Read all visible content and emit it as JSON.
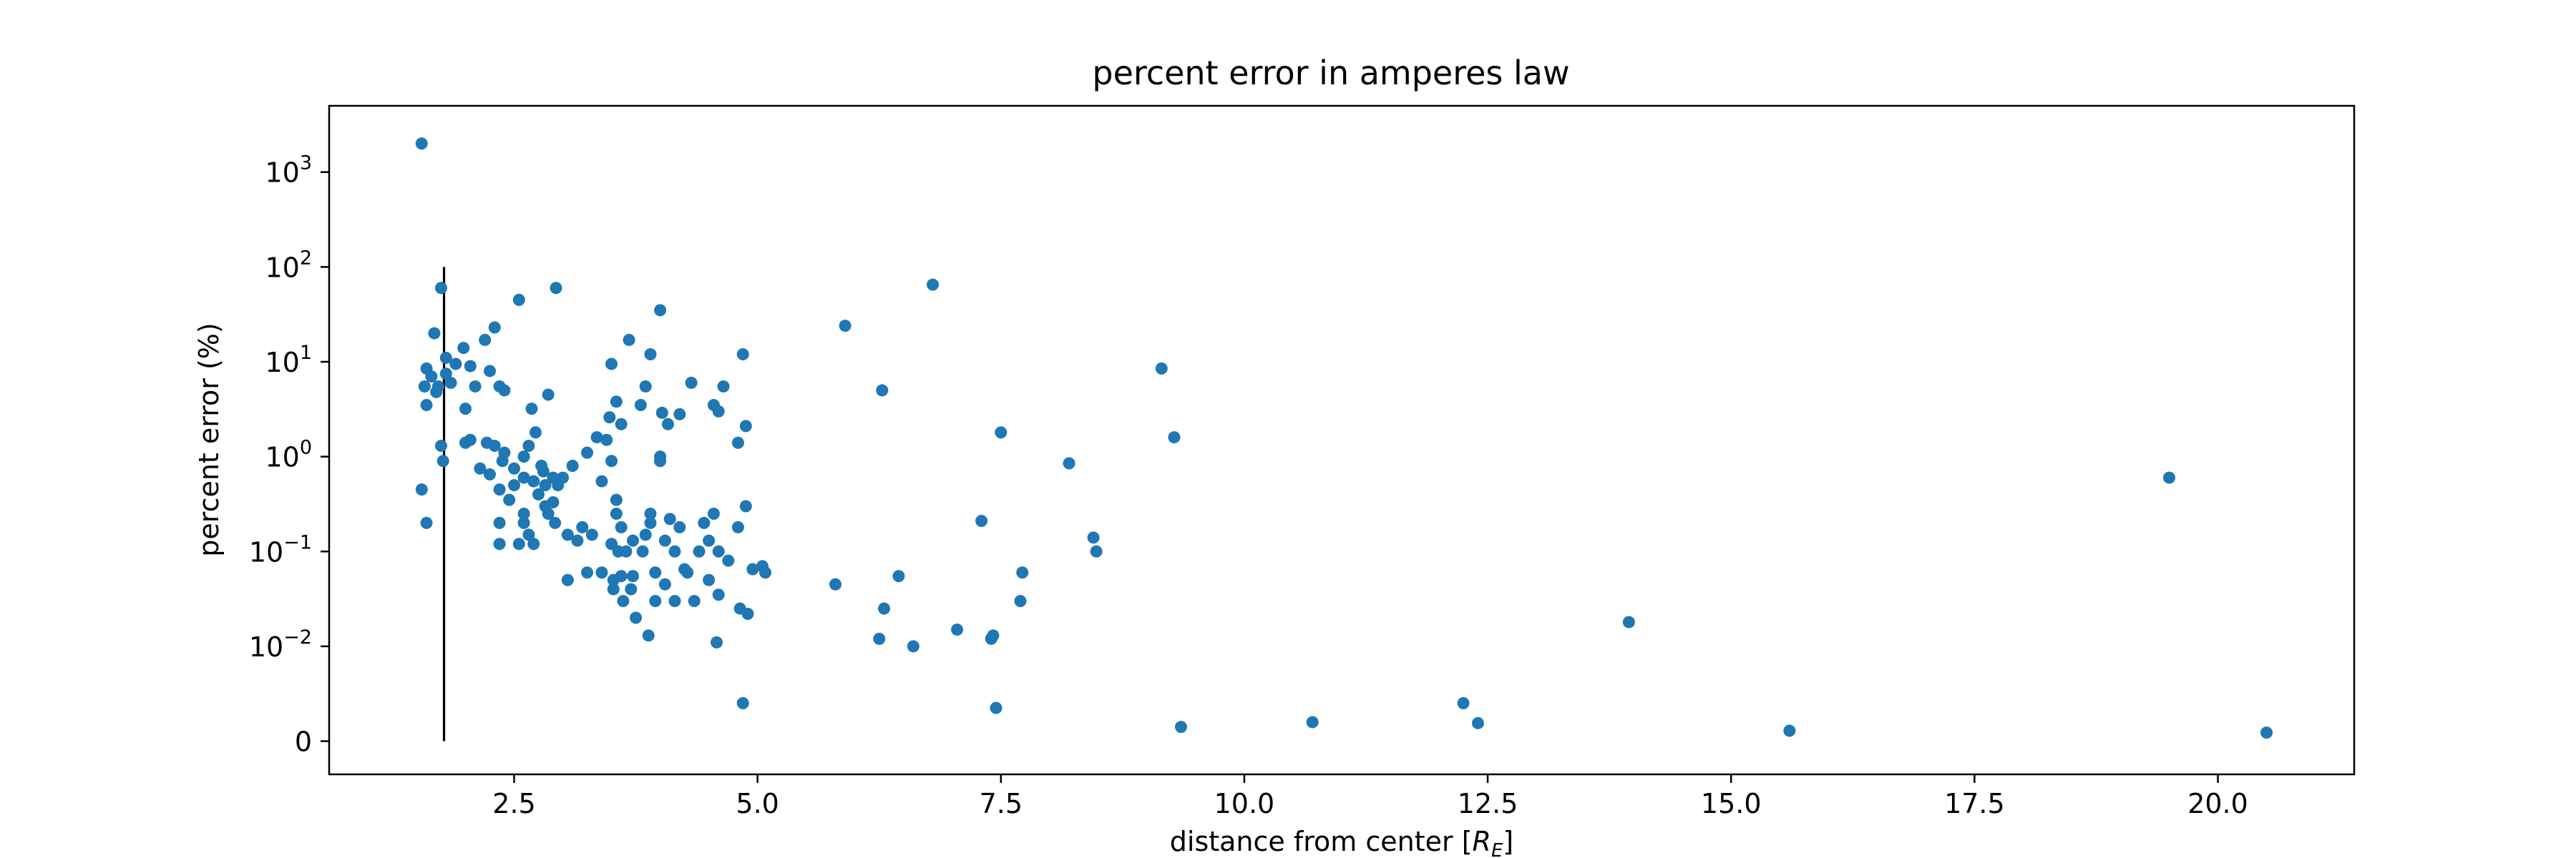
{
  "chart_data": {
    "type": "scatter",
    "title": "percent error in amperes law",
    "xlabel": "distance from center [",
    "xlabel_symbol": "R",
    "xlabel_subscript": "E",
    "xlabel_close": "]",
    "ylabel": "percent error (%)",
    "xlim": [
      0.6,
      21.4
    ],
    "x_ticks": [
      {
        "value": 2.5,
        "label": "2.5"
      },
      {
        "value": 5.0,
        "label": "5.0"
      },
      {
        "value": 7.5,
        "label": "7.5"
      },
      {
        "value": 10.0,
        "label": "10.0"
      },
      {
        "value": 12.5,
        "label": "12.5"
      },
      {
        "value": 15.0,
        "label": "15.0"
      },
      {
        "value": 17.5,
        "label": "17.5"
      },
      {
        "value": 20.0,
        "label": "20.0"
      }
    ],
    "y_scale": "symlog",
    "y_linthresh": 0.01,
    "ylim": [
      -0.0035,
      5000
    ],
    "y_ticks": [
      {
        "value": 0,
        "base": "0",
        "exp": ""
      },
      {
        "value": 0.01,
        "base": "10",
        "exp": "−2"
      },
      {
        "value": 0.1,
        "base": "10",
        "exp": "−1"
      },
      {
        "value": 1,
        "base": "10",
        "exp": "0"
      },
      {
        "value": 10,
        "base": "10",
        "exp": "1"
      },
      {
        "value": 100,
        "base": "10",
        "exp": "2"
      },
      {
        "value": 1000,
        "base": "10",
        "exp": "3"
      }
    ],
    "point_color": "#1f77b4",
    "vertical_line": {
      "x": 1.78,
      "y_from": 0,
      "y_to": 100,
      "color": "#000000"
    },
    "points": [
      [
        1.55,
        2000
      ],
      [
        1.55,
        0.45
      ],
      [
        1.58,
        5.5
      ],
      [
        1.6,
        8.5
      ],
      [
        1.6,
        3.5
      ],
      [
        1.6,
        0.2
      ],
      [
        1.65,
        7.0
      ],
      [
        1.68,
        20
      ],
      [
        1.7,
        4.8
      ],
      [
        1.72,
        5.5
      ],
      [
        1.75,
        60
      ],
      [
        1.75,
        1.3
      ],
      [
        1.77,
        0.9
      ],
      [
        1.8,
        11
      ],
      [
        1.8,
        7.5
      ],
      [
        1.85,
        6.0
      ],
      [
        1.9,
        9.5
      ],
      [
        1.98,
        14
      ],
      [
        2.0,
        3.2
      ],
      [
        2.0,
        1.4
      ],
      [
        2.05,
        9.0
      ],
      [
        2.05,
        1.5
      ],
      [
        2.1,
        5.5
      ],
      [
        2.15,
        0.75
      ],
      [
        2.2,
        17
      ],
      [
        2.22,
        1.4
      ],
      [
        2.25,
        8.0
      ],
      [
        2.25,
        0.65
      ],
      [
        2.3,
        23
      ],
      [
        2.3,
        1.3
      ],
      [
        2.35,
        5.5
      ],
      [
        2.35,
        0.45
      ],
      [
        2.35,
        0.2
      ],
      [
        2.35,
        0.12
      ],
      [
        2.38,
        0.9
      ],
      [
        2.4,
        5.0
      ],
      [
        2.4,
        1.1
      ],
      [
        2.45,
        0.35
      ],
      [
        2.5,
        0.5
      ],
      [
        2.5,
        0.75
      ],
      [
        2.55,
        45
      ],
      [
        2.55,
        0.12
      ],
      [
        2.6,
        1.0
      ],
      [
        2.6,
        0.6
      ],
      [
        2.6,
        0.25
      ],
      [
        2.6,
        0.2
      ],
      [
        2.65,
        1.3
      ],
      [
        2.65,
        0.15
      ],
      [
        2.68,
        3.2
      ],
      [
        2.7,
        0.55
      ],
      [
        2.7,
        0.12
      ],
      [
        2.72,
        1.8
      ],
      [
        2.75,
        0.4
      ],
      [
        2.78,
        0.8
      ],
      [
        2.8,
        0.7
      ],
      [
        2.82,
        0.5
      ],
      [
        2.82,
        0.3
      ],
      [
        2.85,
        4.5
      ],
      [
        2.85,
        0.25
      ],
      [
        2.9,
        0.6
      ],
      [
        2.9,
        0.33
      ],
      [
        2.92,
        0.2
      ],
      [
        2.93,
        60
      ],
      [
        2.95,
        0.5
      ],
      [
        3.0,
        0.6
      ],
      [
        3.05,
        0.15
      ],
      [
        3.05,
        0.05
      ],
      [
        3.1,
        0.8
      ],
      [
        3.15,
        0.13
      ],
      [
        3.2,
        0.18
      ],
      [
        3.25,
        1.1
      ],
      [
        3.25,
        0.06
      ],
      [
        3.3,
        0.15
      ],
      [
        3.35,
        1.6
      ],
      [
        3.4,
        0.55
      ],
      [
        3.4,
        0.06
      ],
      [
        3.45,
        1.5
      ],
      [
        3.48,
        2.6
      ],
      [
        3.5,
        9.5
      ],
      [
        3.5,
        0.9
      ],
      [
        3.5,
        0.12
      ],
      [
        3.52,
        0.05
      ],
      [
        3.52,
        0.04
      ],
      [
        3.55,
        3.8
      ],
      [
        3.55,
        0.35
      ],
      [
        3.55,
        0.25
      ],
      [
        3.57,
        0.1
      ],
      [
        3.6,
        2.2
      ],
      [
        3.6,
        0.18
      ],
      [
        3.6,
        0.055
      ],
      [
        3.62,
        0.03
      ],
      [
        3.65,
        0.1
      ],
      [
        3.68,
        17
      ],
      [
        3.7,
        0.04
      ],
      [
        3.72,
        0.13
      ],
      [
        3.72,
        0.055
      ],
      [
        3.75,
        0.02
      ],
      [
        3.8,
        3.5
      ],
      [
        3.82,
        0.1
      ],
      [
        3.85,
        5.5
      ],
      [
        3.85,
        0.15
      ],
      [
        3.88,
        0.013
      ],
      [
        3.9,
        12
      ],
      [
        3.9,
        0.25
      ],
      [
        3.9,
        0.2
      ],
      [
        3.95,
        0.06
      ],
      [
        3.95,
        0.03
      ],
      [
        4.0,
        35
      ],
      [
        4.0,
        1.0
      ],
      [
        4.0,
        0.9
      ],
      [
        4.02,
        2.9
      ],
      [
        4.05,
        0.13
      ],
      [
        4.05,
        0.045
      ],
      [
        4.08,
        2.2
      ],
      [
        4.1,
        0.22
      ],
      [
        4.15,
        0.03
      ],
      [
        4.15,
        0.1
      ],
      [
        4.2,
        2.8
      ],
      [
        4.2,
        0.18
      ],
      [
        4.25,
        0.065
      ],
      [
        4.28,
        0.06
      ],
      [
        4.32,
        6.0
      ],
      [
        4.35,
        0.03
      ],
      [
        4.4,
        0.1
      ],
      [
        4.45,
        0.2
      ],
      [
        4.5,
        0.13
      ],
      [
        4.5,
        0.05
      ],
      [
        4.55,
        3.5
      ],
      [
        4.55,
        0.25
      ],
      [
        4.58,
        0.011
      ],
      [
        4.6,
        3.0
      ],
      [
        4.6,
        0.1
      ],
      [
        4.6,
        0.035
      ],
      [
        4.65,
        5.5
      ],
      [
        4.7,
        0.08
      ],
      [
        4.8,
        1.4
      ],
      [
        4.8,
        0.18
      ],
      [
        4.82,
        0.025
      ],
      [
        4.85,
        12
      ],
      [
        4.85,
        0.004
      ],
      [
        4.88,
        2.1
      ],
      [
        4.88,
        0.3
      ],
      [
        4.9,
        0.022
      ],
      [
        4.95,
        0.065
      ],
      [
        5.05,
        0.07
      ],
      [
        5.08,
        0.06
      ],
      [
        5.8,
        0.045
      ],
      [
        5.9,
        24
      ],
      [
        6.25,
        0.012
      ],
      [
        6.28,
        5.0
      ],
      [
        6.3,
        0.025
      ],
      [
        6.45,
        0.055
      ],
      [
        6.6,
        0.01
      ],
      [
        6.8,
        65
      ],
      [
        7.05,
        0.015
      ],
      [
        7.3,
        0.21
      ],
      [
        7.4,
        0.012
      ],
      [
        7.42,
        0.013
      ],
      [
        7.45,
        0.0035
      ],
      [
        7.5,
        1.8
      ],
      [
        7.7,
        0.03
      ],
      [
        7.72,
        0.06
      ],
      [
        8.2,
        0.85
      ],
      [
        8.45,
        0.14
      ],
      [
        8.48,
        0.1
      ],
      [
        9.15,
        8.5
      ],
      [
        9.28,
        1.6
      ],
      [
        9.35,
        0.0015
      ],
      [
        10.7,
        0.002
      ],
      [
        12.25,
        0.004
      ],
      [
        12.4,
        0.0019
      ],
      [
        13.95,
        0.018
      ],
      [
        15.6,
        0.0011
      ],
      [
        19.5,
        0.6
      ],
      [
        20.5,
        0.0009
      ]
    ]
  }
}
